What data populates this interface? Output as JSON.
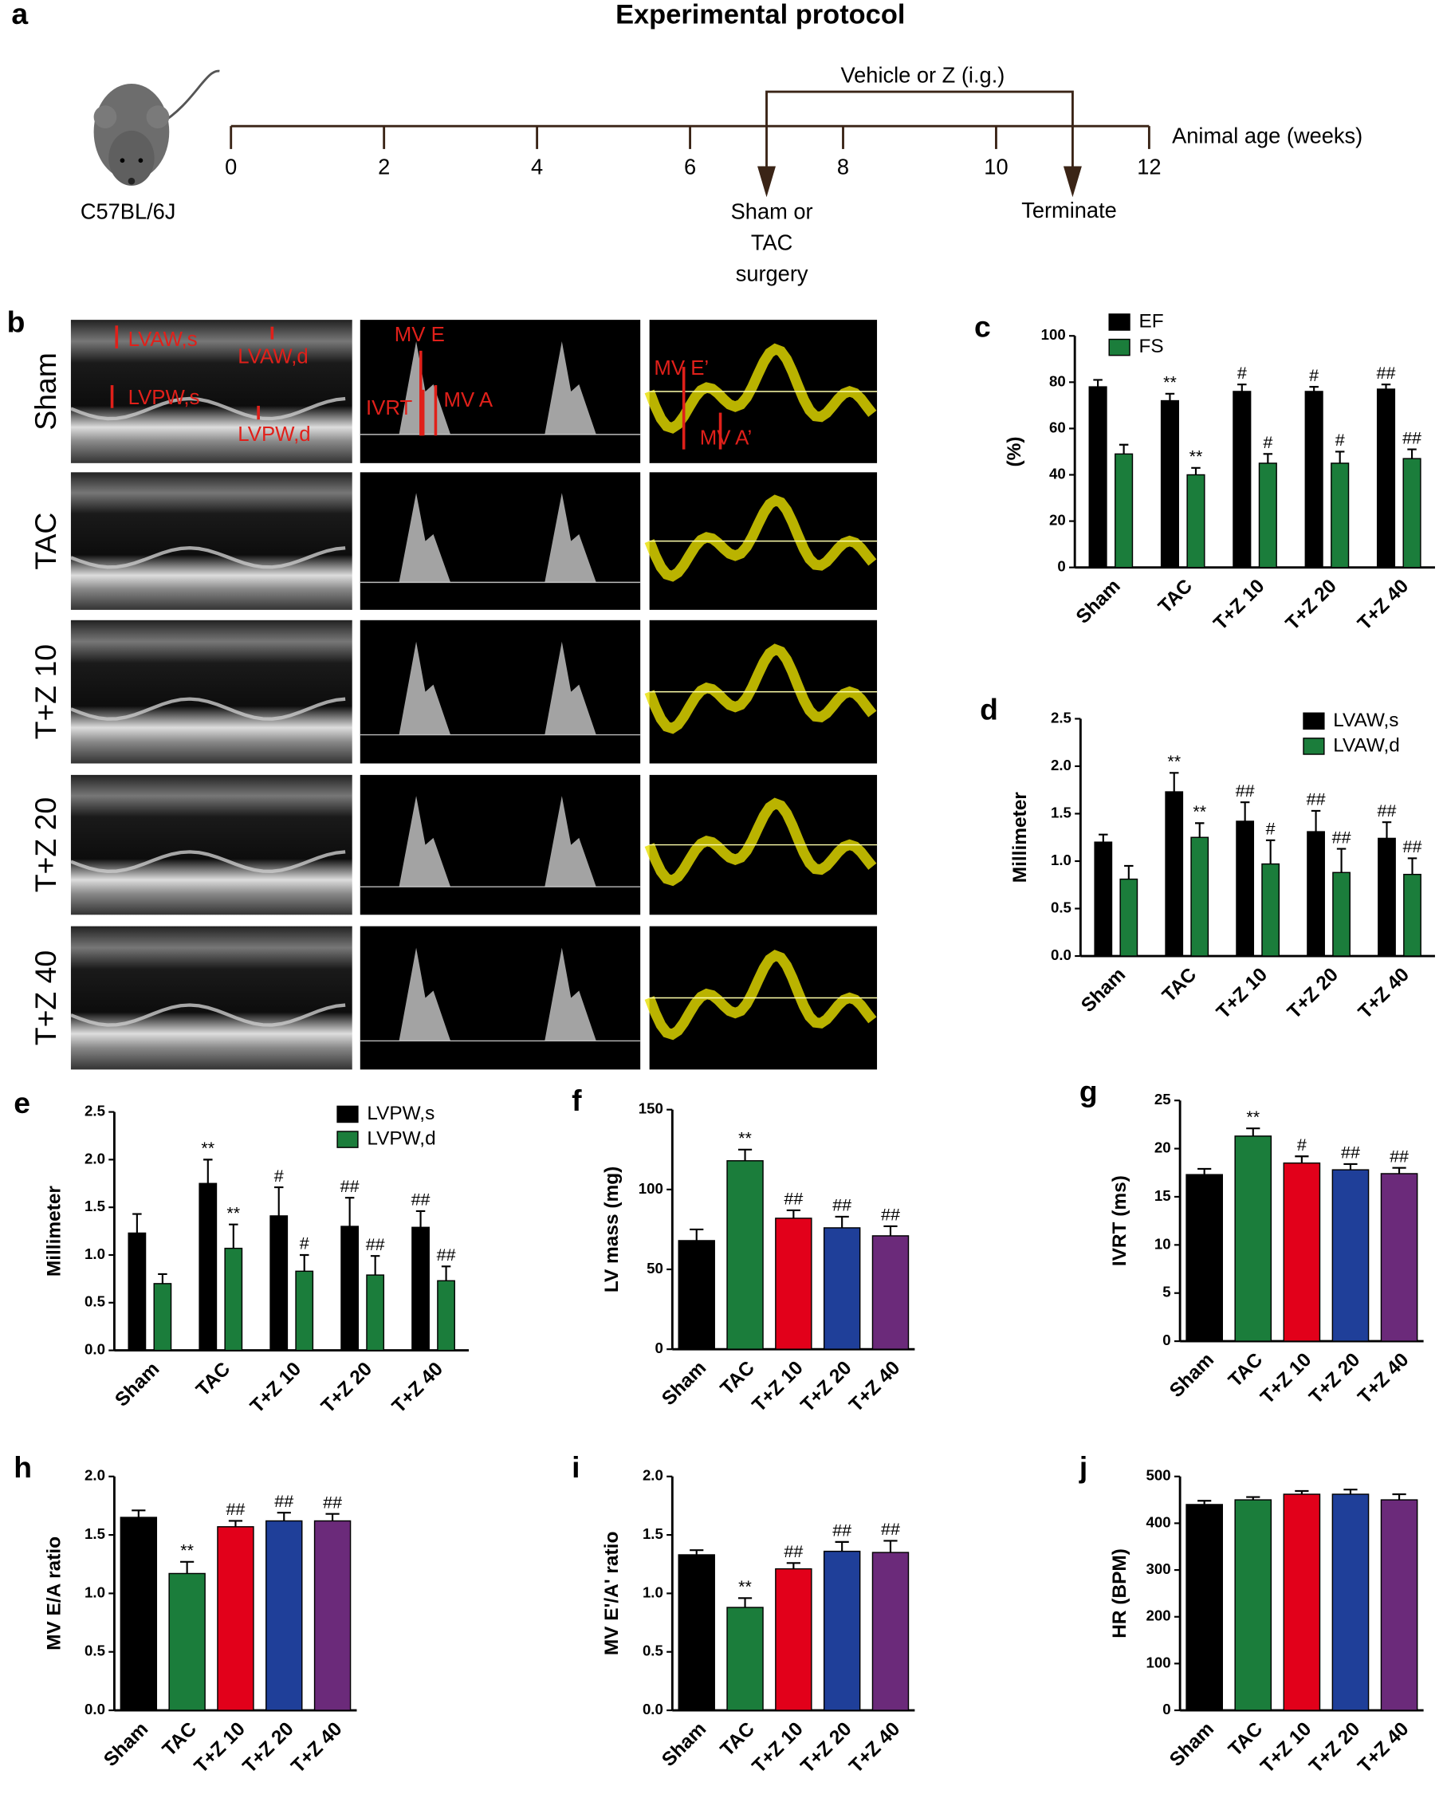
{
  "protocol": {
    "panel": "a",
    "title": "Experimental protocol",
    "strain": "C57BL/6J",
    "axis_label": "Animal age (weeks)",
    "weeks": [
      0,
      2,
      4,
      6,
      8,
      10,
      12
    ],
    "treatment": "Vehicle or Z (i.g.)",
    "surgery": [
      "Sham or",
      "TAC",
      "surgery"
    ],
    "surgery_week": 7,
    "terminate": "Terminate",
    "terminate_week": 11
  },
  "echo": {
    "panel": "b",
    "rows": [
      "Sham",
      "TAC",
      "T+Z 10",
      "T+Z 20",
      "T+Z 40"
    ],
    "annotations": [
      "LVAW,s",
      "LVAW,d",
      "LVPW,s",
      "LVPW,d",
      "MV E",
      "IVRT",
      "MV A",
      "MV E’",
      "MV A’"
    ]
  },
  "chart_data": [
    {
      "panel": "c",
      "type": "bar",
      "categories": [
        "Sham",
        "TAC",
        "T+Z 10",
        "T+Z 20",
        "T+Z 40"
      ],
      "ylabel": "(%)",
      "ylim": [
        0,
        100
      ],
      "yticks": [
        0,
        20,
        40,
        60,
        80,
        100
      ],
      "legend": "upper left",
      "series": [
        {
          "name": "EF",
          "color": "#000000",
          "values": [
            78,
            72,
            76,
            76,
            77
          ],
          "errors": [
            3,
            3,
            3,
            2,
            2
          ],
          "annotations": [
            null,
            "**",
            "#",
            "#",
            "##"
          ]
        },
        {
          "name": "FS",
          "color": "#1b7d3b",
          "values": [
            49,
            40,
            45,
            45,
            47
          ],
          "errors": [
            4,
            3,
            4,
            5,
            4
          ],
          "annotations": [
            null,
            "**",
            "#",
            "#",
            "##"
          ]
        }
      ]
    },
    {
      "panel": "d",
      "type": "bar",
      "categories": [
        "Sham",
        "TAC",
        "T+Z 10",
        "T+Z 20",
        "T+Z 40"
      ],
      "ylabel": "Millimeter",
      "ylim": [
        0,
        2.5
      ],
      "yticks": [
        {
          "value": 0,
          "label": "0.0"
        },
        0.5,
        {
          "value": 1,
          "label": "1.0"
        },
        1.5,
        {
          "value": 2,
          "label": "2.0"
        },
        2.5
      ],
      "legend": "upper right",
      "series": [
        {
          "name": "LVAW,s",
          "color": "#000000",
          "values": [
            1.2,
            1.73,
            1.42,
            1.31,
            1.24
          ],
          "errors": [
            0.08,
            0.2,
            0.2,
            0.22,
            0.17
          ],
          "annotations": [
            null,
            "**",
            "##",
            "##",
            "##"
          ]
        },
        {
          "name": "LVAW,d",
          "color": "#1b7d3b",
          "values": [
            0.81,
            1.25,
            0.97,
            0.88,
            0.86
          ],
          "errors": [
            0.14,
            0.15,
            0.25,
            0.25,
            0.17
          ],
          "annotations": [
            null,
            "**",
            "#",
            "##",
            "##"
          ]
        }
      ]
    },
    {
      "panel": "e",
      "type": "bar",
      "categories": [
        "Sham",
        "TAC",
        "T+Z 10",
        "T+Z 20",
        "T+Z 40"
      ],
      "ylabel": "Millimeter",
      "ylim": [
        0,
        2.5
      ],
      "yticks": [
        {
          "value": 0,
          "label": "0.0"
        },
        0.5,
        {
          "value": 1,
          "label": "1.0"
        },
        1.5,
        {
          "value": 2,
          "label": "2.0"
        },
        2.5
      ],
      "legend": "upper right",
      "series": [
        {
          "name": "LVPW,s",
          "color": "#000000",
          "values": [
            1.23,
            1.75,
            1.41,
            1.3,
            1.29
          ],
          "errors": [
            0.2,
            0.25,
            0.3,
            0.3,
            0.17
          ],
          "annotations": [
            null,
            "**",
            "#",
            "##",
            "##"
          ]
        },
        {
          "name": "LVPW,d",
          "color": "#1b7d3b",
          "values": [
            0.7,
            1.07,
            0.83,
            0.79,
            0.73
          ],
          "errors": [
            0.1,
            0.25,
            0.17,
            0.2,
            0.15
          ],
          "annotations": [
            null,
            "**",
            "#",
            "##",
            "##"
          ]
        }
      ]
    },
    {
      "panel": "f",
      "type": "bar",
      "categories": [
        "Sham",
        "TAC",
        "T+Z 10",
        "T+Z 20",
        "T+Z 40"
      ],
      "ylabel": "LV mass (mg)",
      "ylim": [
        0,
        150
      ],
      "yticks": [
        0,
        50,
        100,
        150
      ],
      "colors": [
        "#000000",
        "#1b7d3b",
        "#e2001a",
        "#1f3f99",
        "#6b2a7a"
      ],
      "values": [
        68,
        118,
        82,
        76,
        71
      ],
      "errors": [
        7,
        7,
        5,
        7,
        6
      ],
      "annotations": [
        null,
        "**",
        "##",
        "##",
        "##"
      ]
    },
    {
      "panel": "g",
      "type": "bar",
      "categories": [
        "Sham",
        "TAC",
        "T+Z 10",
        "T+Z 20",
        "T+Z 40"
      ],
      "ylabel": "IVRT (ms)",
      "ylim": [
        0,
        25
      ],
      "yticks": [
        0,
        5,
        10,
        15,
        20,
        25
      ],
      "colors": [
        "#000000",
        "#1b7d3b",
        "#e2001a",
        "#1f3f99",
        "#6b2a7a"
      ],
      "values": [
        17.3,
        21.3,
        18.5,
        17.8,
        17.4
      ],
      "errors": [
        0.6,
        0.8,
        0.7,
        0.6,
        0.6
      ],
      "annotations": [
        null,
        "**",
        "#",
        "##",
        "##"
      ]
    },
    {
      "panel": "h",
      "type": "bar",
      "categories": [
        "Sham",
        "TAC",
        "T+Z 10",
        "T+Z 20",
        "T+Z 40"
      ],
      "ylabel": "MV E/A ratio",
      "ylim": [
        0,
        2
      ],
      "yticks": [
        {
          "value": 0,
          "label": "0.0"
        },
        0.5,
        {
          "value": 1,
          "label": "1.0"
        },
        1.5,
        {
          "value": 2,
          "label": "2.0"
        }
      ],
      "colors": [
        "#000000",
        "#1b7d3b",
        "#e2001a",
        "#1f3f99",
        "#6b2a7a"
      ],
      "values": [
        1.65,
        1.17,
        1.57,
        1.62,
        1.62
      ],
      "errors": [
        0.06,
        0.1,
        0.05,
        0.07,
        0.06
      ],
      "annotations": [
        null,
        "**",
        "##",
        "##",
        "##"
      ]
    },
    {
      "panel": "i",
      "type": "bar",
      "categories": [
        "Sham",
        "TAC",
        "T+Z 10",
        "T+Z 20",
        "T+Z 40"
      ],
      "ylabel": "MV E'/A' ratio",
      "ylim": [
        0,
        2
      ],
      "yticks": [
        {
          "value": 0,
          "label": "0.0"
        },
        0.5,
        {
          "value": 1,
          "label": "1.0"
        },
        1.5,
        {
          "value": 2,
          "label": "2.0"
        }
      ],
      "colors": [
        "#000000",
        "#1b7d3b",
        "#e2001a",
        "#1f3f99",
        "#6b2a7a"
      ],
      "values": [
        1.33,
        0.88,
        1.21,
        1.36,
        1.35
      ],
      "errors": [
        0.04,
        0.08,
        0.05,
        0.08,
        0.1
      ],
      "annotations": [
        null,
        "**",
        "##",
        "##",
        "##"
      ]
    },
    {
      "panel": "j",
      "type": "bar",
      "categories": [
        "Sham",
        "TAC",
        "T+Z 10",
        "T+Z 20",
        "T+Z 40"
      ],
      "ylabel": "HR (BPM)",
      "ylim": [
        0,
        500
      ],
      "yticks": [
        0,
        100,
        200,
        300,
        400,
        500
      ],
      "colors": [
        "#000000",
        "#1b7d3b",
        "#e2001a",
        "#1f3f99",
        "#6b2a7a"
      ],
      "values": [
        440,
        450,
        462,
        462,
        450
      ],
      "errors": [
        8,
        6,
        7,
        10,
        12
      ]
    }
  ]
}
